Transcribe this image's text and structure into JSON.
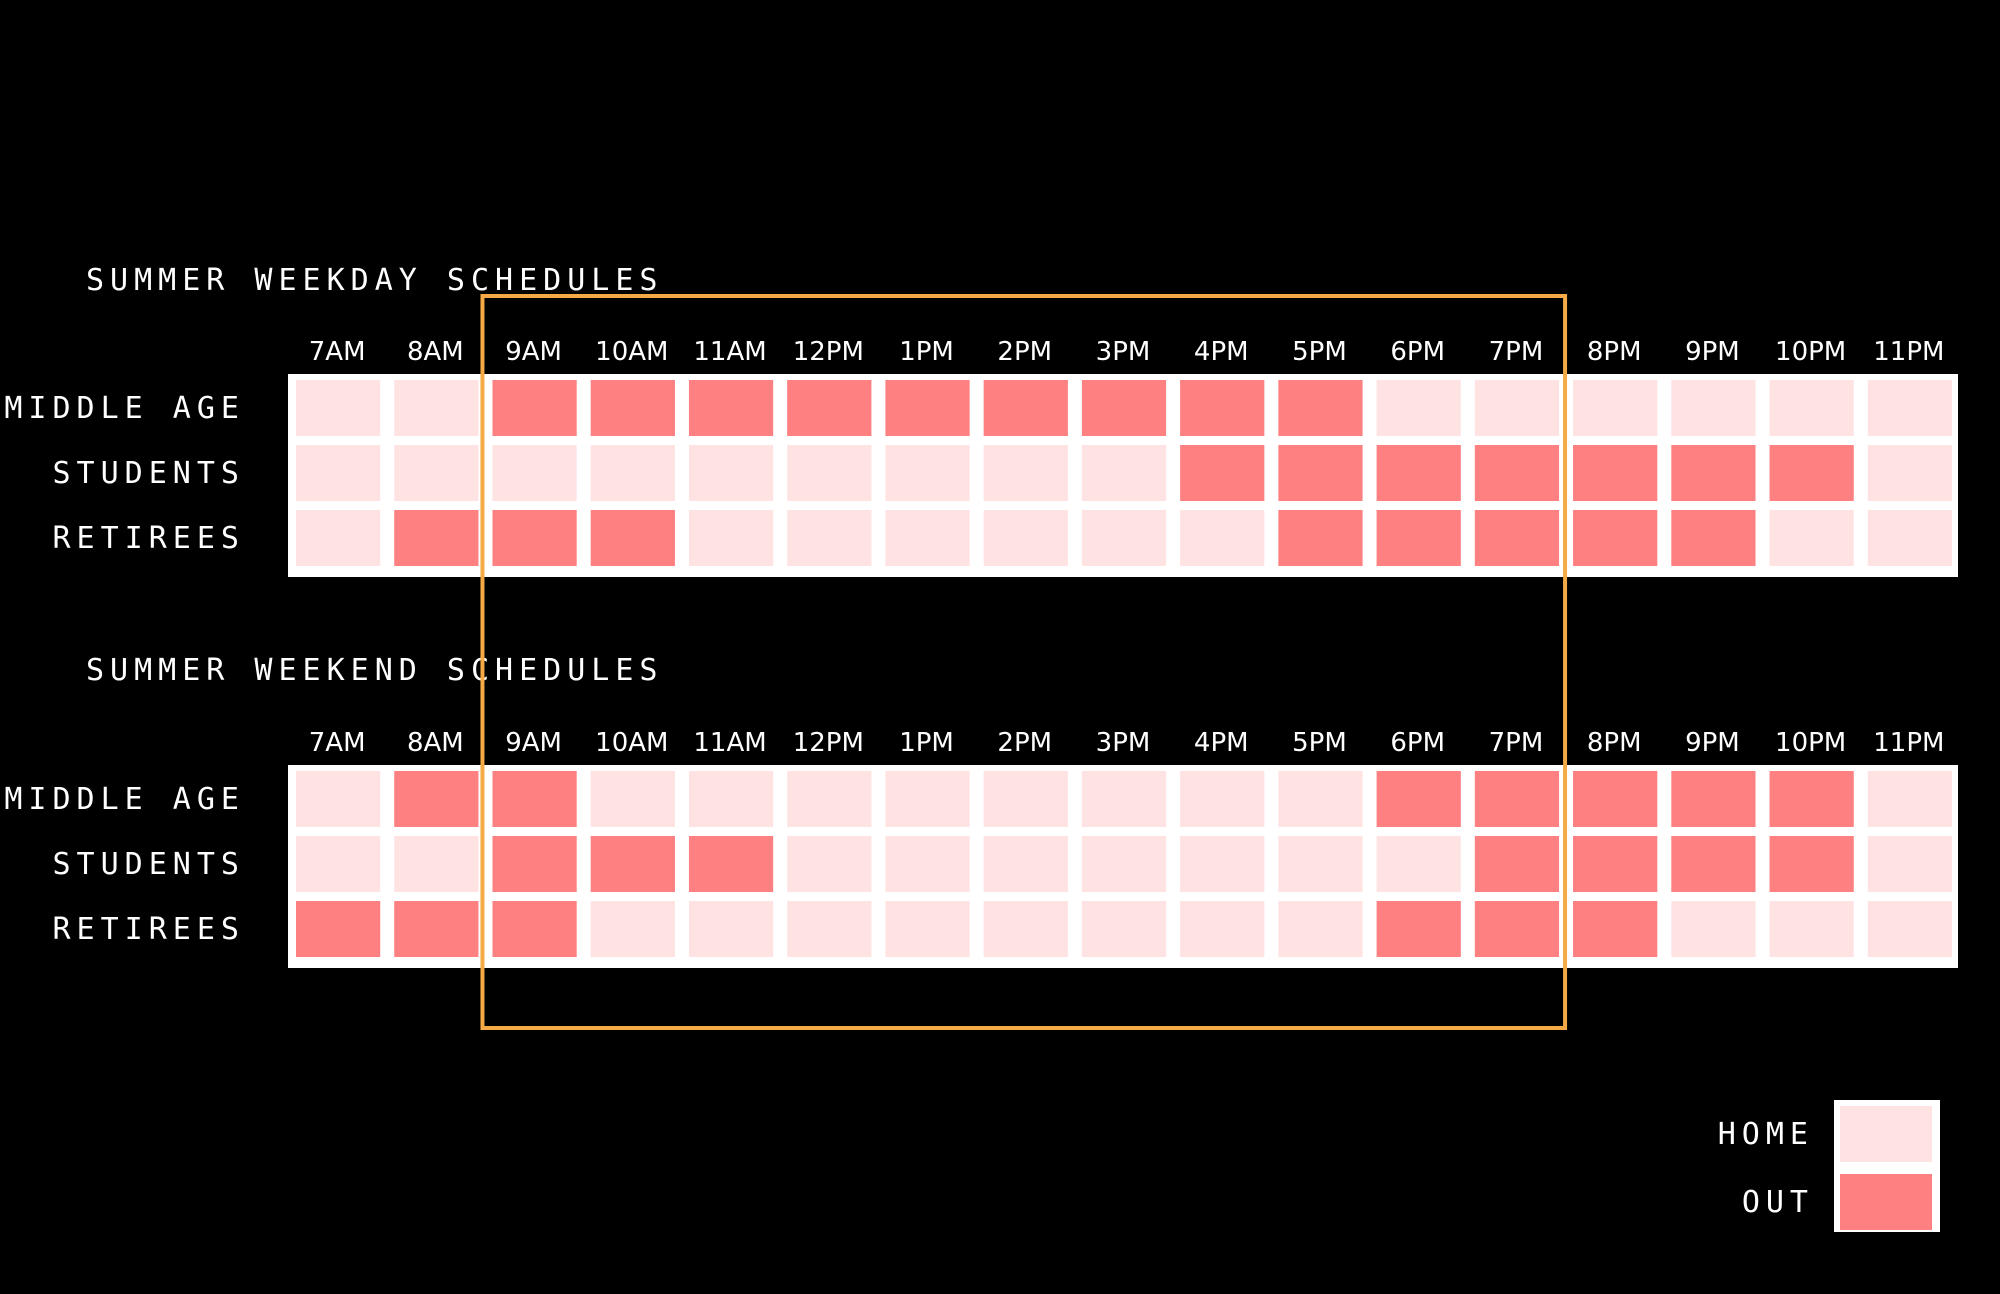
{
  "chart_data": {
    "type": "heatmap",
    "hours": [
      "7AM",
      "8AM",
      "9AM",
      "10AM",
      "11AM",
      "12PM",
      "1PM",
      "2PM",
      "3PM",
      "4PM",
      "5PM",
      "6PM",
      "7PM",
      "8PM",
      "9PM",
      "10PM",
      "11PM"
    ],
    "groups": [
      "MIDDLE AGE",
      "STUDENTS",
      "RETIREES"
    ],
    "legend": [
      {
        "label": "HOME",
        "value": 0,
        "color": "#ffe3e3"
      },
      {
        "label": "OUT",
        "value": 1,
        "color": "#ff8080"
      }
    ],
    "highlight": {
      "from": "9AM",
      "to": "7PM",
      "color": "#f5a947"
    },
    "panels": [
      {
        "title": "SUMMER WEEKDAY SCHEDULES",
        "rows": [
          {
            "group": "MIDDLE AGE",
            "values": [
              0,
              0,
              1,
              1,
              1,
              1,
              1,
              1,
              1,
              1,
              1,
              0,
              0,
              0,
              0,
              0,
              0
            ]
          },
          {
            "group": "STUDENTS",
            "values": [
              0,
              0,
              0,
              0,
              0,
              0,
              0,
              0,
              0,
              1,
              1,
              1,
              1,
              1,
              1,
              1,
              0
            ]
          },
          {
            "group": "RETIREES",
            "values": [
              0,
              1,
              1,
              1,
              0,
              0,
              0,
              0,
              0,
              0,
              1,
              1,
              1,
              1,
              1,
              0,
              0
            ]
          }
        ]
      },
      {
        "title": "SUMMER WEEKEND SCHEDULES",
        "rows": [
          {
            "group": "MIDDLE AGE",
            "values": [
              0,
              1,
              1,
              0,
              0,
              0,
              0,
              0,
              0,
              0,
              0,
              1,
              1,
              1,
              1,
              1,
              0
            ]
          },
          {
            "group": "STUDENTS",
            "values": [
              0,
              0,
              1,
              1,
              1,
              0,
              0,
              0,
              0,
              0,
              0,
              0,
              1,
              1,
              1,
              1,
              0
            ]
          },
          {
            "group": "RETIREES",
            "values": [
              1,
              1,
              1,
              0,
              0,
              0,
              0,
              0,
              0,
              0,
              0,
              1,
              1,
              1,
              0,
              0,
              0
            ]
          }
        ]
      }
    ]
  }
}
